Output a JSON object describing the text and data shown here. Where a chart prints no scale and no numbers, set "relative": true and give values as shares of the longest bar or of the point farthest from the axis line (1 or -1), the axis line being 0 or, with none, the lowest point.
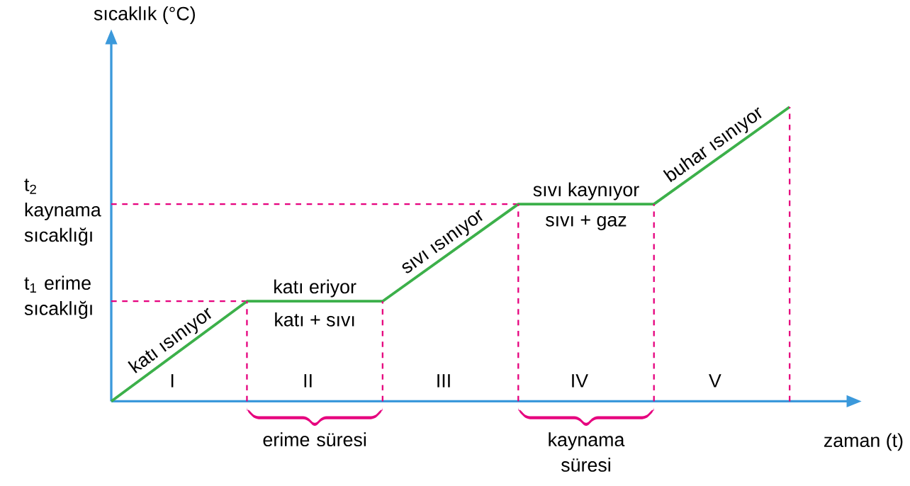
{
  "chart_data": {
    "type": "line",
    "relative": true,
    "categories": [
      null,
      null,
      null,
      null,
      null,
      null
    ],
    "values": [
      0,
      0.34,
      0.34,
      0.67,
      0.67,
      1
    ],
    "color": "#3cb04a",
    "marker": "none",
    "xlabel": "zaman (t)",
    "ylabel": "sıcaklık (°C)",
    "ref_lines": [
      {
        "axis": "y",
        "value": 0.34,
        "label": "t$_{1}$ erime sıcaklığı",
        "color": "#e6007e",
        "line_style": "dashed"
      },
      {
        "axis": "y",
        "value": 0.67,
        "label": "t$_{2}$ kaynama sıcaklığı",
        "color": "#e6007e",
        "line_style": "dashed"
      }
    ],
    "annotations": [
      "katı ısınıyor",
      "katı eriyor",
      "katı + sıvı",
      "sıvı ısınıyor",
      "sıvı kaynıyor",
      "sıvı + gaz",
      "buhar ısınıyor",
      "I",
      "II",
      "III",
      "IV",
      "V",
      "erime süresi",
      "kaynama süresi"
    ]
  }
}
